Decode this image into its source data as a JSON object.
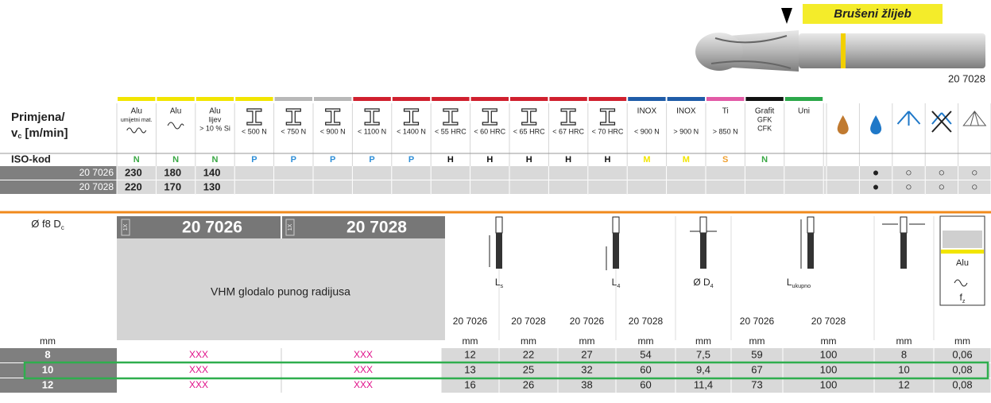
{
  "badge": "Brušeni žlijeb",
  "product_code": "20 7028",
  "application_table": {
    "title": "Primjena/",
    "speed_symbol": "v",
    "speed_sub": "c",
    "speed_unit": "[m/min]",
    "materials": [
      {
        "lines": [
          "Alu",
          "umijetni mat."
        ],
        "color": "#f2e500"
      },
      {
        "lines": [
          "Alu"
        ],
        "color": "#f2e500"
      },
      {
        "lines": [
          "Alu",
          "lijev",
          "> 10 % Si"
        ],
        "color": "#f2e500"
      },
      {
        "lines": [
          "< 500 N"
        ],
        "color": "#f2e500"
      },
      {
        "lines": [
          "< 750 N"
        ],
        "color": "#b8b8b8"
      },
      {
        "lines": [
          "< 900 N"
        ],
        "color": "#b8b8b8"
      },
      {
        "lines": [
          "< 1100 N"
        ],
        "color": "#d0202e"
      },
      {
        "lines": [
          "< 1400 N"
        ],
        "color": "#d0202e"
      },
      {
        "lines": [
          "< 55 HRC"
        ],
        "color": "#d0202e"
      },
      {
        "lines": [
          "< 60 HRC"
        ],
        "color": "#d0202e"
      },
      {
        "lines": [
          "< 65 HRC"
        ],
        "color": "#d0202e"
      },
      {
        "lines": [
          "< 67 HRC"
        ],
        "color": "#d0202e"
      },
      {
        "lines": [
          "< 70 HRC"
        ],
        "color": "#d0202e"
      },
      {
        "lines": [
          "INOX",
          "< 900 N"
        ],
        "color": "#1f5ca8"
      },
      {
        "lines": [
          "INOX",
          "> 900 N"
        ],
        "color": "#1f5ca8"
      },
      {
        "lines": [
          "Ti",
          "> 850 N"
        ],
        "color": "#e25aa6"
      },
      {
        "lines": [
          "Grafit",
          "GFK",
          "CFK"
        ],
        "color": "#111111"
      },
      {
        "lines": [
          "Uni"
        ],
        "color": "#2ca84a"
      }
    ],
    "iso_label": "ISO-kod",
    "iso_codes": [
      {
        "code": "N",
        "color": "#3aa845"
      },
      {
        "code": "N",
        "color": "#3aa845"
      },
      {
        "code": "N",
        "color": "#3aa845"
      },
      {
        "code": "P",
        "color": "#2f8fd8"
      },
      {
        "code": "P",
        "color": "#2f8fd8"
      },
      {
        "code": "P",
        "color": "#2f8fd8"
      },
      {
        "code": "P",
        "color": "#2f8fd8"
      },
      {
        "code": "P",
        "color": "#2f8fd8"
      },
      {
        "code": "H",
        "color": "#111111"
      },
      {
        "code": "H",
        "color": "#111111"
      },
      {
        "code": "H",
        "color": "#111111"
      },
      {
        "code": "H",
        "color": "#111111"
      },
      {
        "code": "H",
        "color": "#111111"
      },
      {
        "code": "M",
        "color": "#f2e500"
      },
      {
        "code": "M",
        "color": "#f2e500"
      },
      {
        "code": "S",
        "color": "#f0a030"
      },
      {
        "code": "N",
        "color": "#3aa845"
      }
    ],
    "rows": [
      {
        "code": "20 7026",
        "speeds": [
          "230",
          "180",
          "140"
        ],
        "coolant": [
          "●",
          "○",
          "○",
          "○"
        ]
      },
      {
        "code": "20 7028",
        "speeds": [
          "220",
          "170",
          "130"
        ],
        "coolant": [
          "●",
          "○",
          "○",
          "○"
        ]
      }
    ]
  },
  "dimension_table": {
    "dc_label": "Ø f8 D",
    "dc_sub": "c",
    "codes": [
      "20 7026",
      "20 7028"
    ],
    "quantity": [
      "1X",
      "1X"
    ],
    "description": "VHM glodalo punog radijusa",
    "dims": [
      {
        "label": "L",
        "sub": "s"
      },
      {
        "label": "L",
        "sub": "4"
      },
      {
        "label": "Ø D",
        "sub": "4"
      },
      {
        "label": "L",
        "sub": "ukupno"
      }
    ],
    "alu": "Alu",
    "fz_label": "f",
    "fz_sub": "z",
    "sub_codes": [
      "20 7026",
      "20 7028",
      "20 7026",
      "20 7028",
      "20 7026",
      "20 7028"
    ],
    "dc_unit": "mm",
    "units": [
      "mm",
      "mm",
      "mm",
      "mm",
      "mm",
      "mm",
      "mm",
      "mm",
      "mm"
    ],
    "rows": [
      {
        "dc": "8",
        "availability": [
          "XXX",
          "XXX"
        ],
        "values": [
          "12",
          "22",
          "27",
          "54",
          "7,5",
          "59",
          "100",
          "8",
          "0,06"
        ]
      },
      {
        "dc": "10",
        "availability": [
          "XXX",
          "XXX"
        ],
        "values": [
          "13",
          "25",
          "32",
          "60",
          "9,4",
          "67",
          "100",
          "10",
          "0,08"
        ]
      },
      {
        "dc": "12",
        "availability": [
          "XXX",
          "XXX"
        ],
        "values": [
          "16",
          "26",
          "38",
          "60",
          "11,4",
          "73",
          "100",
          "12",
          "0,08"
        ]
      }
    ],
    "highlight_row": 1
  }
}
